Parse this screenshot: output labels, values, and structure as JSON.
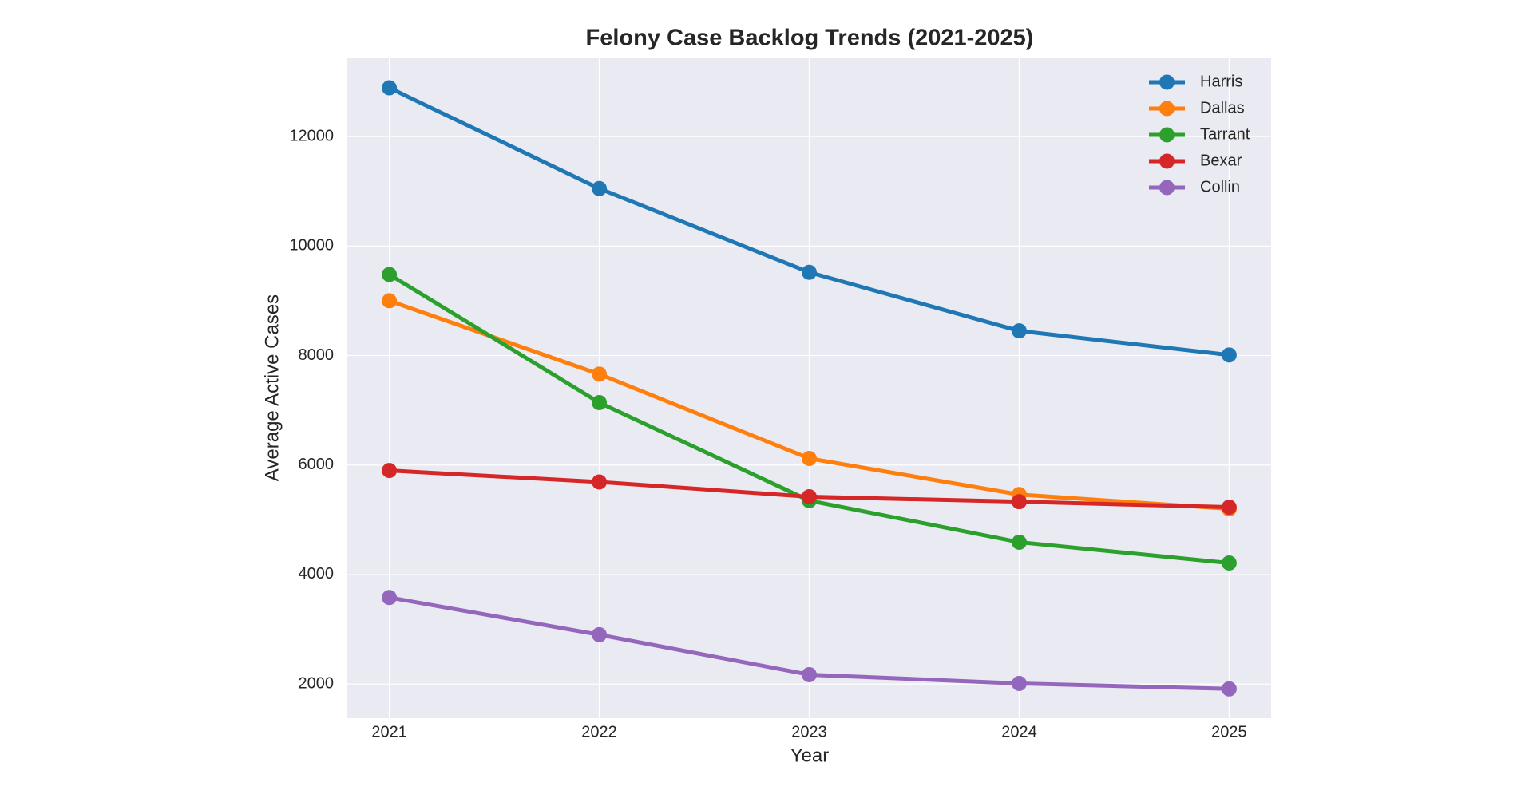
{
  "chart_data": {
    "type": "line",
    "title": "Felony Case Backlog Trends (2021-2025)",
    "x_label": "Year",
    "y_label": "Average Active Cases",
    "x": [
      2021,
      2022,
      2023,
      2024,
      2025
    ],
    "series": [
      {
        "name": "Harris",
        "color": "#1f77b4",
        "values": [
          12890,
          11050,
          9520,
          8450,
          8010
        ]
      },
      {
        "name": "Dallas",
        "color": "#ff7f0e",
        "values": [
          9000,
          7660,
          6120,
          5460,
          5200
        ]
      },
      {
        "name": "Tarrant",
        "color": "#2ca02c",
        "values": [
          9480,
          7140,
          5350,
          4590,
          4210
        ]
      },
      {
        "name": "Bexar",
        "color": "#d62728",
        "values": [
          5900,
          5690,
          5420,
          5330,
          5230
        ]
      },
      {
        "name": "Collin",
        "color": "#9467bd",
        "values": [
          3580,
          2900,
          2170,
          2010,
          1910
        ]
      }
    ],
    "xlim": [
      2020.8,
      2025.2
    ],
    "xticks": [
      2021,
      2022,
      2023,
      2024,
      2025
    ],
    "ylim": [
      1375,
      13430
    ],
    "yticks": [
      2000,
      4000,
      6000,
      8000,
      10000,
      12000
    ],
    "grid": true,
    "legend": "upper right"
  }
}
